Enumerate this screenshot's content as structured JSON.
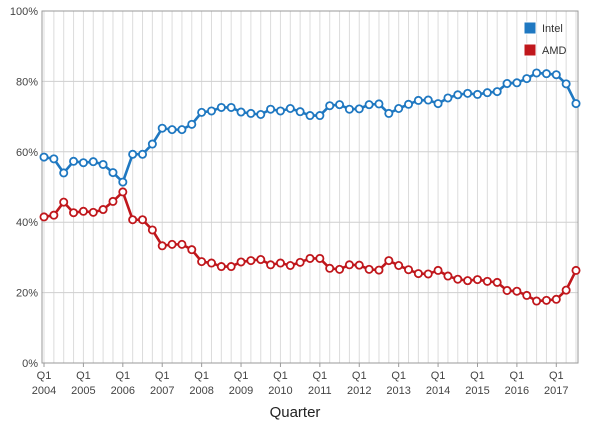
{
  "chart_data": {
    "type": "line",
    "xlabel": "Quarter",
    "ylabel": "",
    "ylim": [
      0,
      100
    ],
    "y_ticks": [
      0,
      20,
      40,
      60,
      80,
      100
    ],
    "y_tick_labels": [
      "0%",
      "20%",
      "40%",
      "60%",
      "80%",
      "100%"
    ],
    "grid": true,
    "legend_position": "top-right",
    "x_ticks": [
      {
        "index": 0,
        "quarter": "Q1",
        "year": "2004"
      },
      {
        "index": 4,
        "quarter": "Q1",
        "year": "2005"
      },
      {
        "index": 8,
        "quarter": "Q1",
        "year": "2006"
      },
      {
        "index": 12,
        "quarter": "Q1",
        "year": "2007"
      },
      {
        "index": 16,
        "quarter": "Q1",
        "year": "2008"
      },
      {
        "index": 20,
        "quarter": "Q1",
        "year": "2009"
      },
      {
        "index": 24,
        "quarter": "Q1",
        "year": "2010"
      },
      {
        "index": 28,
        "quarter": "Q1",
        "year": "2011"
      },
      {
        "index": 32,
        "quarter": "Q1",
        "year": "2012"
      },
      {
        "index": 36,
        "quarter": "Q1",
        "year": "2013"
      },
      {
        "index": 40,
        "quarter": "Q1",
        "year": "2014"
      },
      {
        "index": 44,
        "quarter": "Q1",
        "year": "2015"
      },
      {
        "index": 48,
        "quarter": "Q1",
        "year": "2016"
      },
      {
        "index": 52,
        "quarter": "Q1",
        "year": "2017"
      }
    ],
    "series": [
      {
        "name": "Intel",
        "color": "#1f78c1",
        "values": [
          58.5,
          58,
          54,
          57.3,
          56.9,
          57.2,
          56.4,
          54.1,
          51.4,
          59.3,
          59.3,
          62.2,
          66.7,
          66.3,
          66.3,
          67.8,
          71.2,
          71.6,
          72.6,
          72.6,
          71.3,
          70.9,
          70.6,
          72.1,
          71.6,
          72.3,
          71.4,
          70.3,
          70.3,
          73.1,
          73.4,
          72.1,
          72.2,
          73.4,
          73.6,
          70.9,
          72.3,
          73.5,
          74.6,
          74.7,
          73.7,
          75.3,
          76.2,
          76.6,
          76.3,
          76.8,
          77.1,
          79.4,
          79.6,
          80.8,
          82.4,
          82.2,
          81.9,
          79.3,
          73.7
        ]
      },
      {
        "name": "AMD",
        "color": "#c0171c",
        "values": [
          41.5,
          42,
          45.7,
          42.7,
          43.1,
          42.8,
          43.6,
          45.9,
          48.6,
          40.7,
          40.7,
          37.8,
          33.3,
          33.7,
          33.7,
          32.2,
          28.8,
          28.4,
          27.4,
          27.4,
          28.7,
          29.1,
          29.4,
          27.9,
          28.4,
          27.7,
          28.6,
          29.7,
          29.7,
          26.9,
          26.6,
          27.9,
          27.8,
          26.6,
          26.4,
          29.1,
          27.7,
          26.5,
          25.4,
          25.3,
          26.3,
          24.7,
          23.8,
          23.4,
          23.7,
          23.2,
          22.9,
          20.6,
          20.4,
          19.2,
          17.6,
          17.8,
          18.1,
          20.7,
          26.3
        ]
      }
    ]
  }
}
